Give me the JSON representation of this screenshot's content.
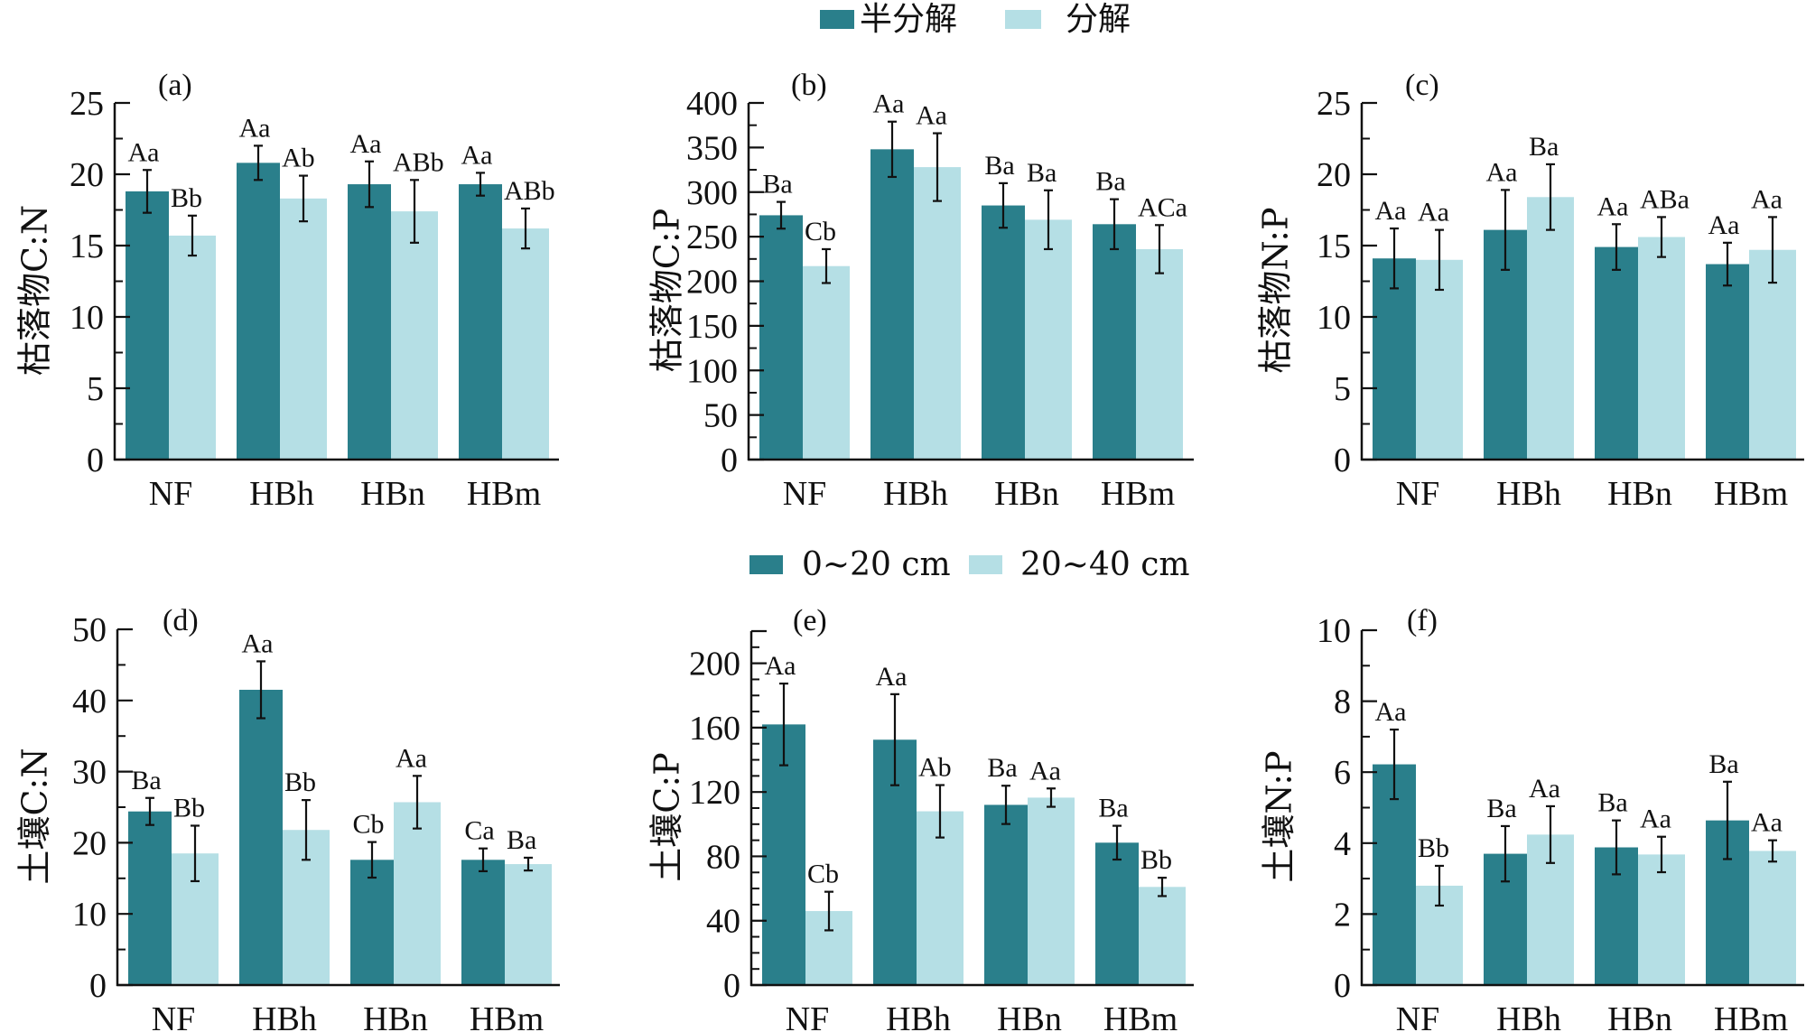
{
  "colors": {
    "series1": "#2a7f8b",
    "series2": "#b5dfe5",
    "axis": "#111111"
  },
  "legends": [
    {
      "items": [
        {
          "label": "半分解",
          "series": 0
        },
        {
          "label": "分解",
          "series": 1
        }
      ]
    },
    {
      "items": [
        {
          "label": "0~20 cm",
          "series": 0
        },
        {
          "label": "20~40 cm",
          "series": 1
        }
      ]
    }
  ],
  "chart_data": [
    {
      "type": "bar",
      "panel": "(a)",
      "title": "",
      "ylabel": "枯落物C:N",
      "xlabel": "",
      "categories": [
        "NF",
        "HBh",
        "HBn",
        "HBm"
      ],
      "ylim": [
        0,
        25
      ],
      "yticks": [
        0,
        5,
        10,
        15,
        20,
        25
      ],
      "minor_step": 2.5,
      "legend": "top-center",
      "series": [
        {
          "name": "半分解",
          "values": [
            18.8,
            20.8,
            19.3,
            19.3
          ],
          "errors": [
            1.5,
            1.2,
            1.6,
            0.8
          ],
          "labels": [
            "Aa",
            "Aa",
            "Aa",
            "Aa"
          ]
        },
        {
          "name": "分解",
          "values": [
            15.7,
            18.3,
            17.4,
            16.2
          ],
          "errors": [
            1.4,
            1.6,
            2.2,
            1.4
          ],
          "labels": [
            "Bb",
            "Ab",
            "ABb",
            "ABb"
          ]
        }
      ]
    },
    {
      "type": "bar",
      "panel": "(b)",
      "title": "",
      "ylabel": "枯落物C:P",
      "xlabel": "",
      "categories": [
        "NF",
        "HBh",
        "HBn",
        "HBm"
      ],
      "ylim": [
        0,
        400
      ],
      "yticks": [
        0,
        50,
        100,
        150,
        200,
        250,
        300,
        350,
        400
      ],
      "minor_step": 25,
      "legend": "top-center",
      "series": [
        {
          "name": "半分解",
          "values": [
            274,
            348,
            285,
            264
          ],
          "errors": [
            15,
            31,
            25,
            28
          ],
          "labels": [
            "Ba",
            "Aa",
            "Ba",
            "Ba"
          ]
        },
        {
          "name": "分解",
          "values": [
            217,
            328,
            269,
            236
          ],
          "errors": [
            19,
            38,
            33,
            27
          ],
          "labels": [
            "Cb",
            "Aa",
            "Ba",
            "ACa"
          ]
        }
      ]
    },
    {
      "type": "bar",
      "panel": "(c)",
      "title": "",
      "ylabel": "枯落物N:P",
      "xlabel": "",
      "categories": [
        "NF",
        "HBh",
        "HBn",
        "HBm"
      ],
      "ylim": [
        0,
        25
      ],
      "yticks": [
        0,
        5,
        10,
        15,
        20,
        25
      ],
      "minor_step": 2.5,
      "legend": "top-center",
      "series": [
        {
          "name": "半分解",
          "values": [
            14.1,
            16.1,
            14.9,
            13.7
          ],
          "errors": [
            2.1,
            2.8,
            1.6,
            1.5
          ],
          "labels": [
            "Aa",
            "Aa",
            "Aa",
            "Aa"
          ]
        },
        {
          "name": "分解",
          "values": [
            14.0,
            18.4,
            15.6,
            14.7
          ],
          "errors": [
            2.1,
            2.3,
            1.4,
            2.3
          ],
          "labels": [
            "Aa",
            "Ba",
            "ABa",
            "Aa"
          ]
        }
      ]
    },
    {
      "type": "bar",
      "panel": "(d)",
      "title": "",
      "ylabel": "土壤C:N",
      "xlabel": "",
      "categories": [
        "NF",
        "HBh",
        "HBn",
        "HBm"
      ],
      "ylim": [
        0,
        50
      ],
      "yticks": [
        0,
        10,
        20,
        30,
        40,
        50
      ],
      "minor_step": 5,
      "legend": "top-center",
      "series": [
        {
          "name": "0~20 cm",
          "values": [
            24.4,
            41.5,
            17.6,
            17.6
          ],
          "errors": [
            1.9,
            4.0,
            2.5,
            1.6
          ],
          "labels": [
            "Ba",
            "Aa",
            "Cb",
            "Ca"
          ]
        },
        {
          "name": "20~40 cm",
          "values": [
            18.5,
            21.8,
            25.7,
            17.0
          ],
          "errors": [
            3.9,
            4.2,
            3.7,
            0.9
          ],
          "labels": [
            "Bb",
            "Bb",
            "Aa",
            "Ba"
          ]
        }
      ]
    },
    {
      "type": "bar",
      "panel": "(e)",
      "title": "",
      "ylabel": "土壤C:P",
      "xlabel": "",
      "categories": [
        "NF",
        "HBh",
        "HBn",
        "HBm"
      ],
      "ylim": [
        0,
        220
      ],
      "yticks": [
        0,
        40,
        80,
        120,
        160,
        200
      ],
      "minor_step": 10,
      "legend": "top-center",
      "series": [
        {
          "name": "0~20 cm",
          "values": [
            162,
            152.5,
            112,
            88.5
          ],
          "errors": [
            25.4,
            28.3,
            11.9,
            10.5
          ],
          "labels": [
            "Aa",
            "Aa",
            "Ba",
            "Ba"
          ]
        },
        {
          "name": "20~40 cm",
          "values": [
            46,
            108,
            116.5,
            61
          ],
          "errors": [
            12,
            16.3,
            5.7,
            5.7
          ],
          "labels": [
            "Cb",
            "Ab",
            "Aa",
            "Bb"
          ]
        }
      ]
    },
    {
      "type": "bar",
      "panel": "(f)",
      "title": "",
      "ylabel": "土壤N:P",
      "xlabel": "",
      "categories": [
        "NF",
        "HBh",
        "HBn",
        "HBm"
      ],
      "ylim": [
        0,
        10
      ],
      "yticks": [
        0,
        2,
        4,
        6,
        8,
        10
      ],
      "minor_step": 1,
      "legend": "top-center",
      "series": [
        {
          "name": "0~20 cm",
          "values": [
            6.22,
            3.7,
            3.88,
            4.64
          ],
          "errors": [
            0.98,
            0.78,
            0.76,
            1.09
          ],
          "labels": [
            "Aa",
            "Ba",
            "Ba",
            "Ba"
          ]
        },
        {
          "name": "20~40 cm",
          "values": [
            2.8,
            4.24,
            3.68,
            3.78
          ],
          "errors": [
            0.56,
            0.8,
            0.5,
            0.3
          ],
          "labels": [
            "Bb",
            "Aa",
            "Aa",
            "Aa"
          ]
        }
      ]
    }
  ]
}
